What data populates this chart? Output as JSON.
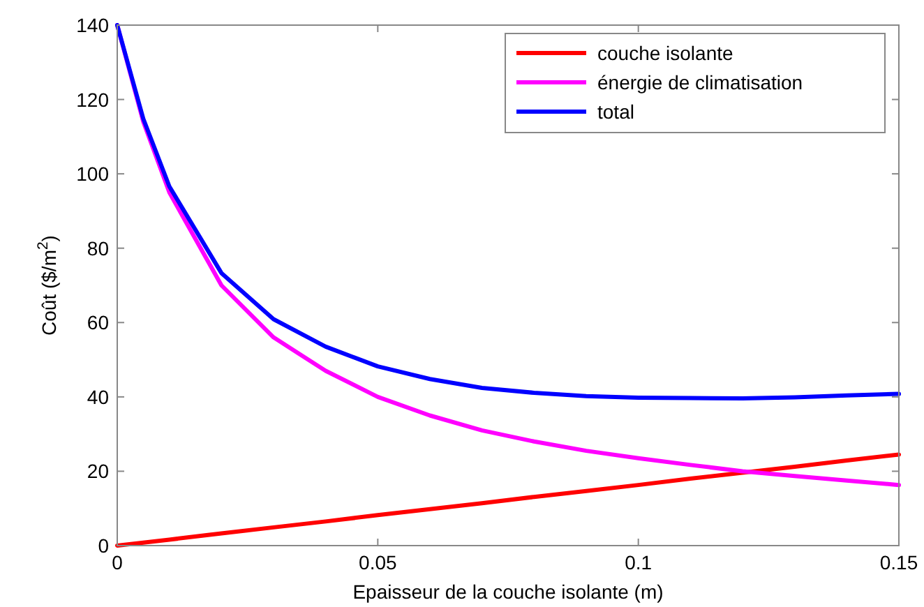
{
  "chart_data": {
    "type": "line",
    "xlabel": "Epaisseur de la couche isolante (m)",
    "ylabel": "Coût ($/m$^{2}$)",
    "x": [
      0,
      0.005,
      0.01,
      0.02,
      0.03,
      0.04,
      0.05,
      0.06,
      0.07,
      0.08,
      0.09,
      0.1,
      0.11,
      0.12,
      0.13,
      0.14,
      0.15
    ],
    "series": [
      {
        "name": "couche isolante",
        "color": "#ff0000",
        "values": [
          0,
          0.8,
          1.6,
          3.3,
          4.9,
          6.5,
          8.2,
          9.8,
          11.4,
          13.1,
          14.7,
          16.3,
          18,
          19.6,
          21.2,
          22.9,
          24.5
        ]
      },
      {
        "name": "énergie de climatisation",
        "color": "#ff00ff",
        "values": [
          140,
          114,
          95,
          70,
          56,
          47,
          40,
          35,
          31,
          28,
          25.5,
          23.5,
          21.7,
          20,
          18.7,
          17.5,
          16.3
        ]
      },
      {
        "name": "total",
        "color": "#0000ff",
        "values": [
          140,
          114.8,
          96.6,
          73.3,
          60.9,
          53.5,
          48.2,
          44.8,
          42.4,
          41.1,
          40.2,
          39.8,
          39.7,
          39.6,
          39.9,
          40.4,
          40.8
        ]
      }
    ],
    "xlim": [
      0,
      0.15
    ],
    "xticks": [
      0,
      0.05,
      0.1,
      0.15
    ],
    "ylim": [
      0,
      140
    ],
    "yticks": [
      0,
      20,
      40,
      60,
      80,
      100,
      120,
      140
    ],
    "legend": "top right",
    "grid": false,
    "line_style": "solid",
    "marker": "none"
  }
}
